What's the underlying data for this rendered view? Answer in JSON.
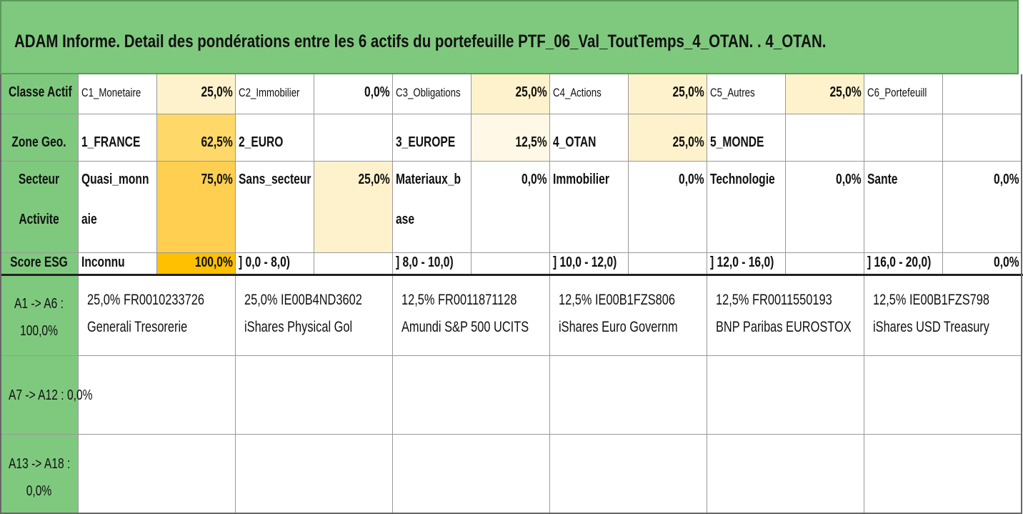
{
  "title": "ADAM Informe. Detail des pondérations entre les 6 actifs du portefeuille PTF_06_Val_ToutTemps_4_OTAN. . 4_OTAN.",
  "rows": {
    "classe": {
      "label": "Classe Actif",
      "items": [
        {
          "name": "C1_Monetaire",
          "value": "25,0%",
          "bg": "#fef2cc"
        },
        {
          "name": "C2_Immobilier",
          "value": "0,0%",
          "bg": "#ffffff"
        },
        {
          "name": "C3_Obligations",
          "value": "25,0%",
          "bg": "#fef2cc"
        },
        {
          "name": "C4_Actions",
          "value": "25,0%",
          "bg": "#fef2cc"
        },
        {
          "name": "C5_Autres",
          "value": "25,0%",
          "bg": "#fef2cc"
        },
        {
          "name": "C6_Portefeuill",
          "value": "",
          "bg": "#ffffff"
        }
      ]
    },
    "zone": {
      "label": "Zone Geo.",
      "items": [
        {
          "name": "1_FRANCE",
          "value": "62,5%",
          "bg": "#fed868"
        },
        {
          "name": "2_EURO",
          "value": "",
          "bg": "#ffffff"
        },
        {
          "name": "3_EUROPE",
          "value": "12,5%",
          "bg": "#fff8e6"
        },
        {
          "name": "4_OTAN",
          "value": "25,0%",
          "bg": "#fef2cc"
        },
        {
          "name": "5_MONDE",
          "value": "",
          "bg": "#ffffff"
        },
        {
          "name": "",
          "value": "",
          "bg": "#ffffff"
        }
      ]
    },
    "secteur": {
      "label_line1": "Secteur",
      "label_line2": "Activite",
      "items": [
        {
          "name_line1": "Quasi_monn",
          "name_line2": "aie",
          "value": "75,0%",
          "bg": "#fecf50"
        },
        {
          "name_line1": "Sans_secteur",
          "name_line2": "",
          "value": "25,0%",
          "bg": "#fef2cc"
        },
        {
          "name_line1": "Materiaux_b",
          "name_line2": "ase",
          "value": "0,0%",
          "bg": "#ffffff"
        },
        {
          "name_line1": "Immobilier",
          "name_line2": "",
          "value": "0,0%",
          "bg": "#ffffff"
        },
        {
          "name_line1": "Technologie",
          "name_line2": "",
          "value": "0,0%",
          "bg": "#ffffff"
        },
        {
          "name_line1": "Sante",
          "name_line2": "",
          "value": "0,0%",
          "bg": "#ffffff"
        }
      ]
    },
    "esg": {
      "label": "Score ESG",
      "items": [
        {
          "name": "Inconnu",
          "value": "100,0%",
          "bg": "#fec000"
        },
        {
          "name": "] 0,0 - 8,0)",
          "value": "",
          "bg": "#ffffff"
        },
        {
          "name": "] 8,0 - 10,0)",
          "value": "",
          "bg": "#ffffff"
        },
        {
          "name": "] 10,0 - 12,0)",
          "value": "",
          "bg": "#ffffff"
        },
        {
          "name": "] 12,0 - 16,0)",
          "value": "",
          "bg": "#ffffff"
        },
        {
          "name": "] 16,0 - 20,0)",
          "value": "0,0%",
          "bg": "#ffffff"
        }
      ]
    }
  },
  "assets": {
    "groups": [
      {
        "label_line1": "A1 -> A6 :",
        "label_line2": "100,0%",
        "items": [
          {
            "line1": "25,0% FR0010233726",
            "line2": "Generali Tresorerie"
          },
          {
            "line1": "25,0% IE00B4ND3602",
            "line2": "iShares Physical Gol"
          },
          {
            "line1": "12,5% FR0011871128",
            "line2": "Amundi S&P 500 UCITS"
          },
          {
            "line1": "12,5% IE00B1FZS806",
            "line2": "iShares Euro Governm"
          },
          {
            "line1": "12,5% FR0011550193",
            "line2": "BNP Paribas EUROSTOX"
          },
          {
            "line1": "12,5% IE00B1FZS798",
            "line2": "iShares USD Treasury"
          }
        ]
      },
      {
        "label_line1": "A7 -> A12 : 0,0%",
        "label_line2": "",
        "items": []
      },
      {
        "label_line1": "A13 -> A18 :",
        "label_line2": "0,0%",
        "items": []
      }
    ]
  },
  "colors": {
    "header_green": "#7fc97f"
  }
}
